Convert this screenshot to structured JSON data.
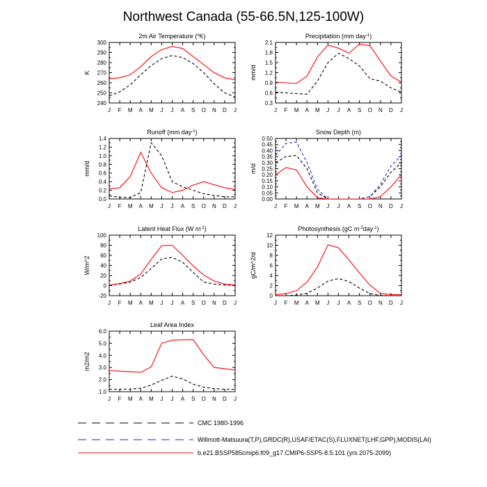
{
  "figure": {
    "title": "Northwest Canada (55-66.5N,125-100W)"
  },
  "legend": {
    "entries": [
      {
        "label": "CMC 1980-1996",
        "color": "#000000",
        "dashed": true
      },
      {
        "label": "Willmott-Matsuura(T,P),GRDC(R),USAF/ETAC(S),FLUXNET(LHF,GPP),MODIS(LAI)",
        "color": "#2222cc",
        "dashed": true
      },
      {
        "label": "b.e21.BSSP585cmip6.f09_g17.CMIP6-SSP5-8.5.101 (yrs 2075-2099)",
        "color": "#ff0000",
        "dashed": false
      }
    ]
  },
  "chart_data": [
    {
      "type": "line",
      "title": "2m Air Temperature (°K)",
      "title_parts": {
        "pre": "2m Air Temperature (",
        "sup": "o",
        "post": "K)"
      },
      "ylabel": "K",
      "ylim": [
        240,
        300
      ],
      "yticks": [
        "240",
        "250",
        "260",
        "270",
        "280",
        "290",
        "300"
      ],
      "ytick_values": [
        240,
        250,
        260,
        270,
        280,
        290,
        300
      ],
      "categories": [
        "J",
        "F",
        "M",
        "A",
        "M",
        "J",
        "J",
        "A",
        "S",
        "O",
        "N",
        "D",
        "J"
      ],
      "series": [
        {
          "name": "CMC 1980-1996",
          "color": "#000000",
          "dashed": true,
          "values": [
            247,
            251,
            258,
            268,
            277,
            284,
            287,
            285,
            279,
            270,
            259,
            250,
            246
          ]
        },
        {
          "name": "b.e21.BSSP585cmip6.f09_g17.CMIP6-SSP5-8.5.101 (yrs 2075-2099)",
          "color": "#ff0000",
          "dashed": false,
          "values": [
            264,
            265,
            268,
            276,
            286,
            293,
            296,
            294,
            286,
            278,
            270,
            265,
            263
          ]
        }
      ]
    },
    {
      "type": "line",
      "title": "Precipitation (mm day-1)",
      "title_parts": {
        "pre": "Precipitation (mm day",
        "sup": "-1",
        "post": ")"
      },
      "ylabel": "mm/d",
      "ylim": [
        0.3,
        2.1
      ],
      "yticks": [
        "0.3",
        "0.6",
        "0.9",
        "1.2",
        "1.5",
        "1.8",
        "2.1"
      ],
      "ytick_values": [
        0.3,
        0.6,
        0.9,
        1.2,
        1.5,
        1.8,
        2.1
      ],
      "categories": [
        "J",
        "F",
        "M",
        "A",
        "M",
        "J",
        "J",
        "A",
        "S",
        "O",
        "N",
        "D",
        "J"
      ],
      "series": [
        {
          "name": "CMC 1980-1996",
          "color": "#000000",
          "dashed": true,
          "values": [
            0.62,
            0.6,
            0.58,
            0.56,
            0.95,
            1.5,
            1.78,
            1.62,
            1.4,
            1.02,
            0.95,
            0.75,
            0.62
          ]
        },
        {
          "name": "b.e21.BSSP585cmip6.f09_g17.CMIP6-SSP5-8.5.101 (yrs 2075-2099)",
          "color": "#ff0000",
          "dashed": false,
          "values": [
            0.92,
            0.9,
            0.88,
            1.1,
            1.67,
            2.02,
            1.93,
            1.78,
            2.05,
            2.0,
            1.55,
            1.1,
            0.92
          ]
        }
      ]
    },
    {
      "type": "line",
      "title": "Runoff (mm day-1)",
      "title_parts": {
        "pre": "Runoff (mm day",
        "sup": "-1",
        "post": ")"
      },
      "ylabel": "mm/d",
      "ylim": [
        0,
        1.4
      ],
      "yticks": [
        "0.0",
        "0.2",
        "0.4",
        "0.6",
        "0.8",
        "1.0",
        "1.2",
        "1.4"
      ],
      "ytick_values": [
        0,
        0.2,
        0.4,
        0.6,
        0.8,
        1.0,
        1.2,
        1.4
      ],
      "categories": [
        "J",
        "F",
        "M",
        "A",
        "M",
        "J",
        "J",
        "A",
        "S",
        "O",
        "N",
        "D",
        "J"
      ],
      "series": [
        {
          "name": "CMC 1980-1996",
          "color": "#000000",
          "dashed": true,
          "values": [
            0.07,
            0.04,
            0.03,
            0.15,
            1.3,
            1.0,
            0.4,
            0.28,
            0.2,
            0.12,
            0.08,
            0.05,
            0.05
          ]
        },
        {
          "name": "b.e21.BSSP585cmip6.f09_g17.CMIP6-SSP5-8.5.101 (yrs 2075-2099)",
          "color": "#ff0000",
          "dashed": false,
          "values": [
            0.23,
            0.26,
            0.52,
            1.08,
            0.6,
            0.26,
            0.15,
            0.2,
            0.32,
            0.4,
            0.33,
            0.26,
            0.22
          ]
        }
      ]
    },
    {
      "type": "line",
      "title": "Snow Depth (m)",
      "title_parts": {
        "pre": "Snow Depth (m)",
        "sup": "",
        "post": ""
      },
      "ylabel": "m/d",
      "ylim": [
        0,
        0.5
      ],
      "yticks": [
        "0.00",
        "0.05",
        "0.10",
        "0.15",
        "0.20",
        "0.25",
        "0.30",
        "0.35",
        "0.40",
        "0.45",
        "0.50"
      ],
      "ytick_values": [
        0,
        0.05,
        0.1,
        0.15,
        0.2,
        0.25,
        0.3,
        0.35,
        0.4,
        0.45,
        0.5
      ],
      "categories": [
        "J",
        "F",
        "M",
        "A",
        "M",
        "J",
        "J",
        "A",
        "S",
        "O",
        "N",
        "D",
        "J"
      ],
      "series": [
        {
          "name": "CMC 1980-1996",
          "color": "#000000",
          "dashed": true,
          "values": [
            0.3,
            0.35,
            0.36,
            0.25,
            0.05,
            0.0,
            0.0,
            0.0,
            0.0,
            0.02,
            0.1,
            0.22,
            0.3
          ]
        },
        {
          "name": "Willmott-Matsuura(T,P),GRDC(R),USAF/ETAC(S),FLUXNET(LHF,GPP),MODIS(LAI)",
          "color": "#2222cc",
          "dashed": true,
          "values": [
            0.36,
            0.46,
            0.47,
            0.3,
            0.08,
            0.0,
            0.0,
            0.0,
            0.0,
            0.02,
            0.12,
            0.27,
            0.36
          ]
        },
        {
          "name": "b.e21.BSSP585cmip6.f09_g17.CMIP6-SSP5-8.5.101 (yrs 2075-2099)",
          "color": "#ff0000",
          "dashed": false,
          "values": [
            0.2,
            0.26,
            0.24,
            0.1,
            0.01,
            0.0,
            0.0,
            0.0,
            0.0,
            0.0,
            0.02,
            0.1,
            0.2
          ]
        }
      ]
    },
    {
      "type": "line",
      "title": "Latent Heat Flux (W m-2)",
      "title_parts": {
        "pre": "Latent Heat Flux (W m",
        "sup": "-2",
        "post": ")"
      },
      "ylabel": "W/m^2",
      "ylim": [
        -20,
        100
      ],
      "yticks": [
        "-20",
        "0",
        "20",
        "40",
        "60",
        "80",
        "100"
      ],
      "ytick_values": [
        -20,
        0,
        20,
        40,
        60,
        80,
        100
      ],
      "categories": [
        "J",
        "F",
        "M",
        "A",
        "M",
        "J",
        "J",
        "A",
        "S",
        "O",
        "N",
        "D",
        "J"
      ],
      "series": [
        {
          "name": "CMC 1980-1996",
          "color": "#000000",
          "dashed": true,
          "values": [
            1,
            3,
            7,
            16,
            34,
            53,
            56,
            46,
            26,
            7,
            3,
            1,
            1
          ]
        },
        {
          "name": "b.e21.BSSP585cmip6.f09_g17.CMIP6-SSP5-8.5.101 (yrs 2075-2099)",
          "color": "#ff0000",
          "dashed": false,
          "values": [
            1,
            4,
            9,
            23,
            52,
            79,
            80,
            60,
            39,
            21,
            9,
            3,
            1
          ]
        }
      ]
    },
    {
      "type": "line",
      "title": "Photosynthesis (gC m-2day-1)",
      "title_parts": {
        "pre": "Photosynthesis (gC m",
        "sup": "-2",
        "mid": "day",
        "sup2": "-1",
        "post": ")"
      },
      "ylabel": "gC/m^2/d",
      "ylim": [
        0,
        12
      ],
      "yticks": [
        "0",
        "2",
        "4",
        "6",
        "8",
        "10",
        "12"
      ],
      "ytick_values": [
        0,
        2,
        4,
        6,
        8,
        10,
        12
      ],
      "categories": [
        "J",
        "F",
        "M",
        "A",
        "M",
        "J",
        "J",
        "A",
        "S",
        "O",
        "N",
        "D",
        "J"
      ],
      "series": [
        {
          "name": "CMC 1980-1996",
          "color": "#000000",
          "dashed": true,
          "values": [
            0.0,
            0.0,
            0.1,
            0.5,
            1.5,
            2.9,
            3.4,
            2.8,
            1.5,
            0.4,
            0.05,
            0.0,
            0.0
          ]
        },
        {
          "name": "b.e21.BSSP585cmip6.f09_g17.CMIP6-SSP5-8.5.101 (yrs 2075-2099)",
          "color": "#ff0000",
          "dashed": false,
          "values": [
            0.2,
            0.4,
            1.0,
            2.7,
            5.7,
            10.1,
            9.5,
            7.1,
            4.5,
            2.1,
            0.45,
            0.2,
            0.2
          ]
        }
      ]
    },
    {
      "type": "line",
      "title": "Leaf Area Index",
      "title_parts": {
        "pre": "Leaf Area Index",
        "sup": "",
        "post": ""
      },
      "ylabel": "m2/m2",
      "ylim": [
        1.0,
        6.0
      ],
      "yticks": [
        "1.0",
        "2.0",
        "3.0",
        "4.0",
        "5.0",
        "6.0"
      ],
      "ytick_values": [
        1,
        2,
        3,
        4,
        5,
        6
      ],
      "categories": [
        "J",
        "F",
        "M",
        "A",
        "M",
        "J",
        "J",
        "A",
        "S",
        "O",
        "N",
        "D",
        "J"
      ],
      "series": [
        {
          "name": "CMC 1980-1996",
          "color": "#000000",
          "dashed": true,
          "values": [
            1.2,
            1.2,
            1.22,
            1.28,
            1.55,
            1.95,
            2.28,
            2.05,
            1.62,
            1.38,
            1.25,
            1.2,
            1.2
          ]
        },
        {
          "name": "b.e21.BSSP585cmip6.f09_g17.CMIP6-SSP5-8.5.101 (yrs 2075-2099)",
          "color": "#ff0000",
          "dashed": false,
          "values": [
            2.75,
            2.7,
            2.65,
            2.6,
            3.05,
            5.0,
            5.25,
            5.28,
            5.3,
            4.05,
            3.0,
            2.9,
            2.78
          ]
        }
      ]
    }
  ]
}
